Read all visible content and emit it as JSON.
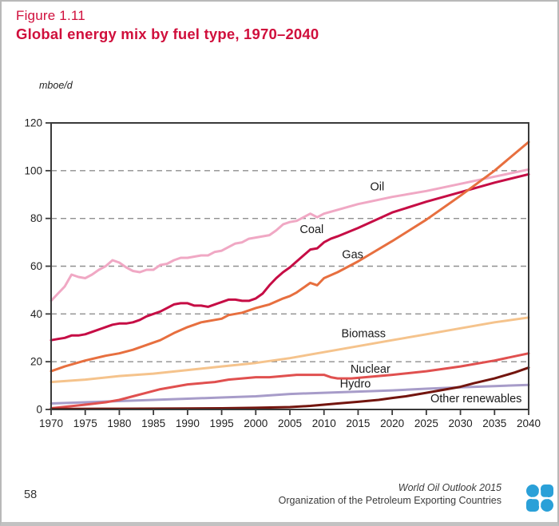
{
  "page": {
    "figure_label": "Figure 1.11",
    "title": "Global energy mix by fuel type, 1970–2040",
    "unit_label": "mboe/d",
    "page_number": "58",
    "footer_line1": "World Oil Outlook 2015",
    "footer_line2": "Organization of the Petroleum Exporting Countries",
    "accent_red": "#d00f3c",
    "logo_blue": "#2aa0d8",
    "logo_name": "opec-logo"
  },
  "chart_data": {
    "type": "line",
    "title": "Global energy mix by fuel type, 1970–2040",
    "unit_label": "mboe/d",
    "xlabel": "",
    "ylabel": "mboe/d",
    "xlim": [
      1970,
      2040
    ],
    "ylim": [
      0,
      120
    ],
    "x_ticks": [
      1970,
      1975,
      1980,
      1985,
      1990,
      1995,
      2000,
      2005,
      2010,
      2015,
      2020,
      2025,
      2030,
      2035,
      2040
    ],
    "y_ticks": [
      0,
      20,
      40,
      60,
      80,
      100,
      120
    ],
    "grid": "horizontal-dashed",
    "grid_color": "#8f8f8f",
    "box_color": "#3a3a3a",
    "tick_label_color": "#1f1f1f",
    "legend": "inline-labels",
    "series": [
      {
        "name": "Oil",
        "color": "#f0a8c4",
        "label_at": {
          "year": 2017.8,
          "value": 93.5
        },
        "points": [
          [
            1970,
            45.5
          ],
          [
            1971,
            48.5
          ],
          [
            1972,
            51.5
          ],
          [
            1973,
            56.5
          ],
          [
            1974,
            55.5
          ],
          [
            1975,
            55
          ],
          [
            1976,
            56.5
          ],
          [
            1977,
            58.5
          ],
          [
            1978,
            60
          ],
          [
            1979,
            62.5
          ],
          [
            1980,
            61.5
          ],
          [
            1981,
            59.5
          ],
          [
            1982,
            58
          ],
          [
            1983,
            57.5
          ],
          [
            1984,
            58.5
          ],
          [
            1985,
            58.5
          ],
          [
            1986,
            60.5
          ],
          [
            1987,
            61
          ],
          [
            1988,
            62.5
          ],
          [
            1989,
            63.5
          ],
          [
            1990,
            63.5
          ],
          [
            1991,
            64
          ],
          [
            1992,
            64.5
          ],
          [
            1993,
            64.5
          ],
          [
            1994,
            66
          ],
          [
            1995,
            66.5
          ],
          [
            1996,
            68
          ],
          [
            1997,
            69.5
          ],
          [
            1998,
            70
          ],
          [
            1999,
            71.5
          ],
          [
            2000,
            72
          ],
          [
            2001,
            72.5
          ],
          [
            2002,
            73
          ],
          [
            2003,
            75
          ],
          [
            2004,
            77.5
          ],
          [
            2005,
            78.5
          ],
          [
            2006,
            79
          ],
          [
            2007,
            80.5
          ],
          [
            2008,
            82
          ],
          [
            2009,
            80.5
          ],
          [
            2010,
            82
          ],
          [
            2015,
            86
          ],
          [
            2020,
            89
          ],
          [
            2025,
            91.5
          ],
          [
            2030,
            94.5
          ],
          [
            2035,
            97.5
          ],
          [
            2040,
            100.5
          ]
        ]
      },
      {
        "name": "Coal",
        "color": "#c60d45",
        "label_at": {
          "year": 2008.2,
          "value": 75.5
        },
        "points": [
          [
            1970,
            29
          ],
          [
            1971,
            29.5
          ],
          [
            1972,
            30
          ],
          [
            1973,
            31
          ],
          [
            1974,
            31
          ],
          [
            1975,
            31.5
          ],
          [
            1976,
            32.5
          ],
          [
            1977,
            33.5
          ],
          [
            1978,
            34.5
          ],
          [
            1979,
            35.5
          ],
          [
            1980,
            36
          ],
          [
            1981,
            36
          ],
          [
            1982,
            36.5
          ],
          [
            1983,
            37.5
          ],
          [
            1984,
            39
          ],
          [
            1985,
            40
          ],
          [
            1986,
            41
          ],
          [
            1987,
            42.5
          ],
          [
            1988,
            44
          ],
          [
            1989,
            44.5
          ],
          [
            1990,
            44.5
          ],
          [
            1991,
            43.5
          ],
          [
            1992,
            43.5
          ],
          [
            1993,
            43
          ],
          [
            1994,
            44
          ],
          [
            1995,
            45
          ],
          [
            1996,
            46
          ],
          [
            1997,
            46
          ],
          [
            1998,
            45.5
          ],
          [
            1999,
            45.5
          ],
          [
            2000,
            46.5
          ],
          [
            2001,
            48.5
          ],
          [
            2002,
            52
          ],
          [
            2003,
            55
          ],
          [
            2004,
            57.5
          ],
          [
            2005,
            59.5
          ],
          [
            2006,
            62
          ],
          [
            2007,
            64.5
          ],
          [
            2008,
            67
          ],
          [
            2009,
            67.5
          ],
          [
            2010,
            70
          ],
          [
            2011,
            71.5
          ],
          [
            2012,
            72.5
          ],
          [
            2015,
            76
          ],
          [
            2020,
            82.5
          ],
          [
            2025,
            87
          ],
          [
            2030,
            91
          ],
          [
            2035,
            95
          ],
          [
            2040,
            98.5
          ]
        ]
      },
      {
        "name": "Gas",
        "color": "#e76f3f",
        "label_at": {
          "year": 2014.2,
          "value": 65
        },
        "points": [
          [
            1970,
            16
          ],
          [
            1972,
            18
          ],
          [
            1975,
            20.5
          ],
          [
            1978,
            22.5
          ],
          [
            1980,
            23.5
          ],
          [
            1982,
            25
          ],
          [
            1984,
            27
          ],
          [
            1985,
            28
          ],
          [
            1986,
            29
          ],
          [
            1988,
            32
          ],
          [
            1990,
            34.5
          ],
          [
            1992,
            36.5
          ],
          [
            1994,
            37.5
          ],
          [
            1995,
            38
          ],
          [
            1996,
            39.5
          ],
          [
            1998,
            40.5
          ],
          [
            2000,
            42.5
          ],
          [
            2002,
            44
          ],
          [
            2004,
            46.5
          ],
          [
            2005,
            47.5
          ],
          [
            2006,
            49
          ],
          [
            2007,
            51
          ],
          [
            2008,
            53
          ],
          [
            2009,
            52
          ],
          [
            2010,
            55
          ],
          [
            2012,
            57.5
          ],
          [
            2015,
            62
          ],
          [
            2020,
            70.5
          ],
          [
            2025,
            79.5
          ],
          [
            2030,
            89.5
          ],
          [
            2035,
            100
          ],
          [
            2040,
            112
          ]
        ]
      },
      {
        "name": "Biomass",
        "color": "#f5c38c",
        "label_at": {
          "year": 2015.8,
          "value": 32
        },
        "points": [
          [
            1970,
            11.5
          ],
          [
            1975,
            12.5
          ],
          [
            1980,
            14
          ],
          [
            1985,
            15
          ],
          [
            1990,
            16.5
          ],
          [
            1995,
            18
          ],
          [
            2000,
            19.5
          ],
          [
            2005,
            21.5
          ],
          [
            2010,
            24
          ],
          [
            2015,
            26.5
          ],
          [
            2020,
            29
          ],
          [
            2025,
            31.5
          ],
          [
            2030,
            34
          ],
          [
            2035,
            36.5
          ],
          [
            2040,
            38.5
          ]
        ]
      },
      {
        "name": "Hydro",
        "color": "#a79cc9",
        "label_at": {
          "year": 2014.6,
          "value": 10.8
        },
        "points": [
          [
            1970,
            2.5
          ],
          [
            1975,
            3
          ],
          [
            1980,
            3.5
          ],
          [
            1985,
            4
          ],
          [
            1990,
            4.5
          ],
          [
            1995,
            5
          ],
          [
            2000,
            5.5
          ],
          [
            2005,
            6.5
          ],
          [
            2010,
            7
          ],
          [
            2015,
            7.5
          ],
          [
            2020,
            8
          ],
          [
            2025,
            8.7
          ],
          [
            2030,
            9.3
          ],
          [
            2035,
            9.8
          ],
          [
            2040,
            10.3
          ]
        ]
      },
      {
        "name": "Nuclear",
        "color": "#e0504f",
        "label_at": {
          "year": 2016.8,
          "value": 17
        },
        "points": [
          [
            1970,
            0.5
          ],
          [
            1975,
            2
          ],
          [
            1978,
            3
          ],
          [
            1980,
            4
          ],
          [
            1982,
            5.5
          ],
          [
            1984,
            7
          ],
          [
            1986,
            8.5
          ],
          [
            1988,
            9.5
          ],
          [
            1990,
            10.5
          ],
          [
            1992,
            11
          ],
          [
            1994,
            11.5
          ],
          [
            1996,
            12.5
          ],
          [
            1998,
            13
          ],
          [
            2000,
            13.5
          ],
          [
            2002,
            13.5
          ],
          [
            2004,
            14
          ],
          [
            2006,
            14.5
          ],
          [
            2008,
            14.5
          ],
          [
            2010,
            14.5
          ],
          [
            2011,
            13.5
          ],
          [
            2012,
            13
          ],
          [
            2014,
            13
          ],
          [
            2016,
            13.5
          ],
          [
            2020,
            14.5
          ],
          [
            2025,
            16
          ],
          [
            2030,
            18
          ],
          [
            2035,
            20.5
          ],
          [
            2040,
            23.5
          ]
        ]
      },
      {
        "name": "Other renewables",
        "color": "#73150e",
        "label_at": {
          "year": 2032.3,
          "value": 4.6
        },
        "points": [
          [
            1970,
            0.2
          ],
          [
            1980,
            0.3
          ],
          [
            1990,
            0.4
          ],
          [
            1995,
            0.5
          ],
          [
            2000,
            0.7
          ],
          [
            2005,
            1
          ],
          [
            2008,
            1.5
          ],
          [
            2010,
            2
          ],
          [
            2012,
            2.5
          ],
          [
            2015,
            3.2
          ],
          [
            2018,
            4
          ],
          [
            2020,
            4.8
          ],
          [
            2022,
            5.5
          ],
          [
            2025,
            7
          ],
          [
            2028,
            8.5
          ],
          [
            2030,
            9.5
          ],
          [
            2032,
            11
          ],
          [
            2035,
            13
          ],
          [
            2038,
            15.5
          ],
          [
            2040,
            17.5
          ]
        ]
      }
    ]
  }
}
